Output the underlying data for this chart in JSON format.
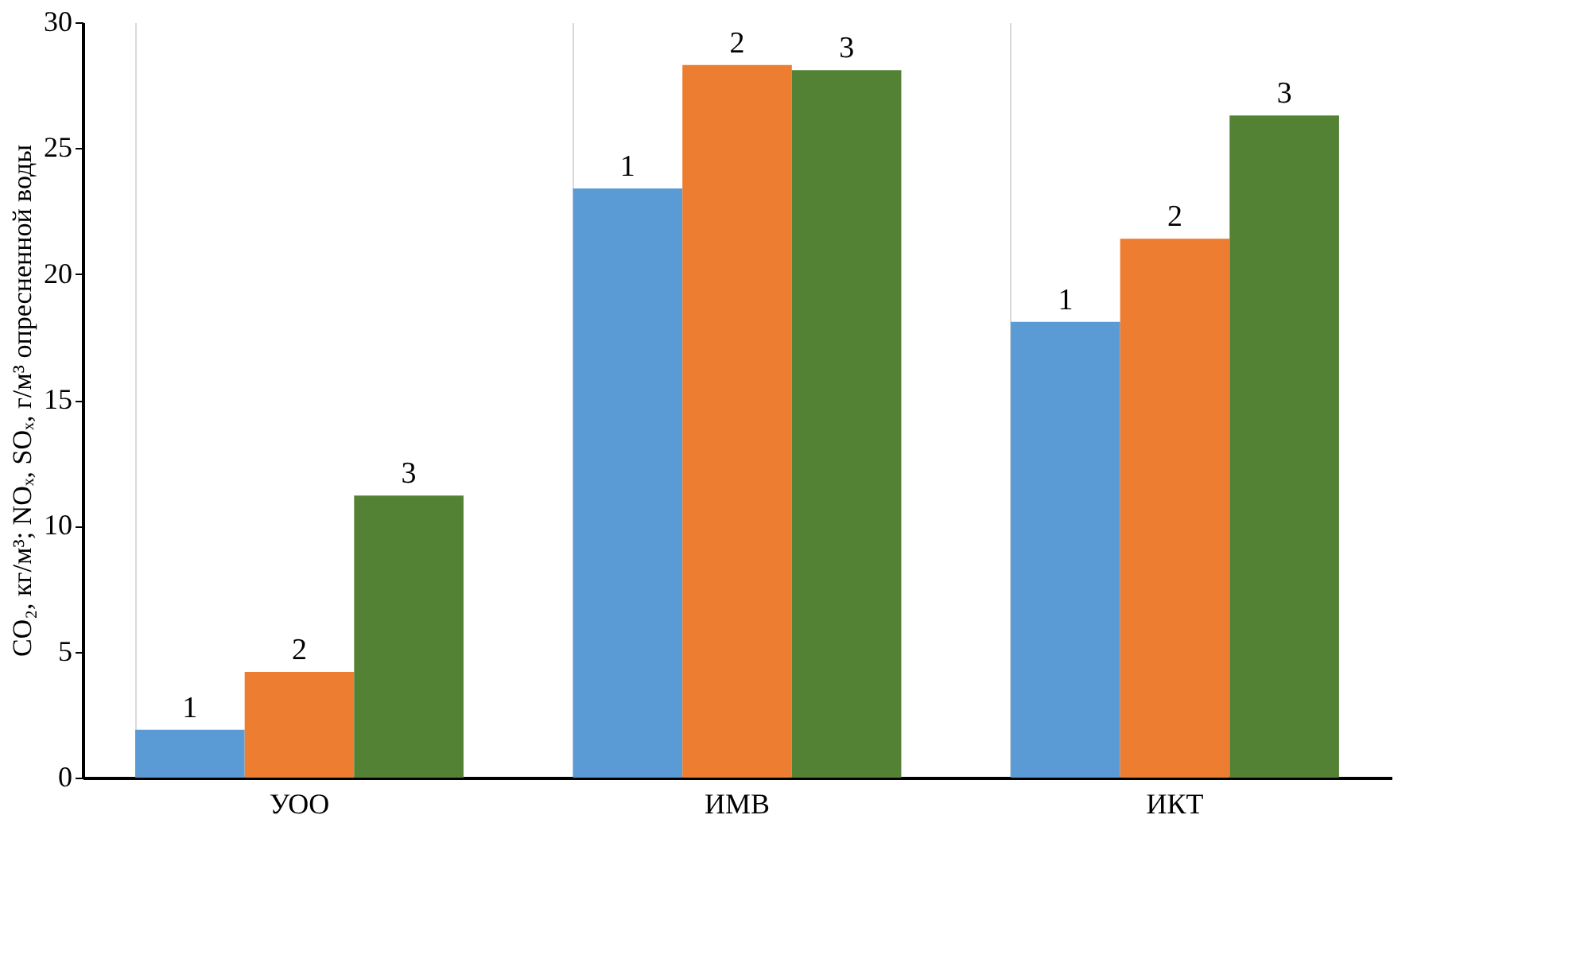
{
  "chart_data": {
    "type": "bar",
    "categories": [
      "УОО",
      "ИМВ",
      "ИКТ"
    ],
    "ylabel": "CO₂, кг/м³; NOₓ, SOₓ, г/м³ опресненной воды",
    "series": [
      {
        "name": "1",
        "color": "#5b9bd5",
        "values": [
          1.9,
          23.4,
          18.1
        ]
      },
      {
        "name": "2",
        "color": "#ed7d31",
        "values": [
          4.2,
          28.3,
          21.4
        ]
      },
      {
        "name": "3",
        "color": "#548235",
        "values": [
          11.2,
          28.1,
          26.3
        ]
      }
    ],
    "ylim": [
      0,
      30
    ],
    "yticks": [
      0,
      5,
      10,
      15,
      20,
      25,
      30
    ],
    "grid": "x",
    "legend": false
  }
}
